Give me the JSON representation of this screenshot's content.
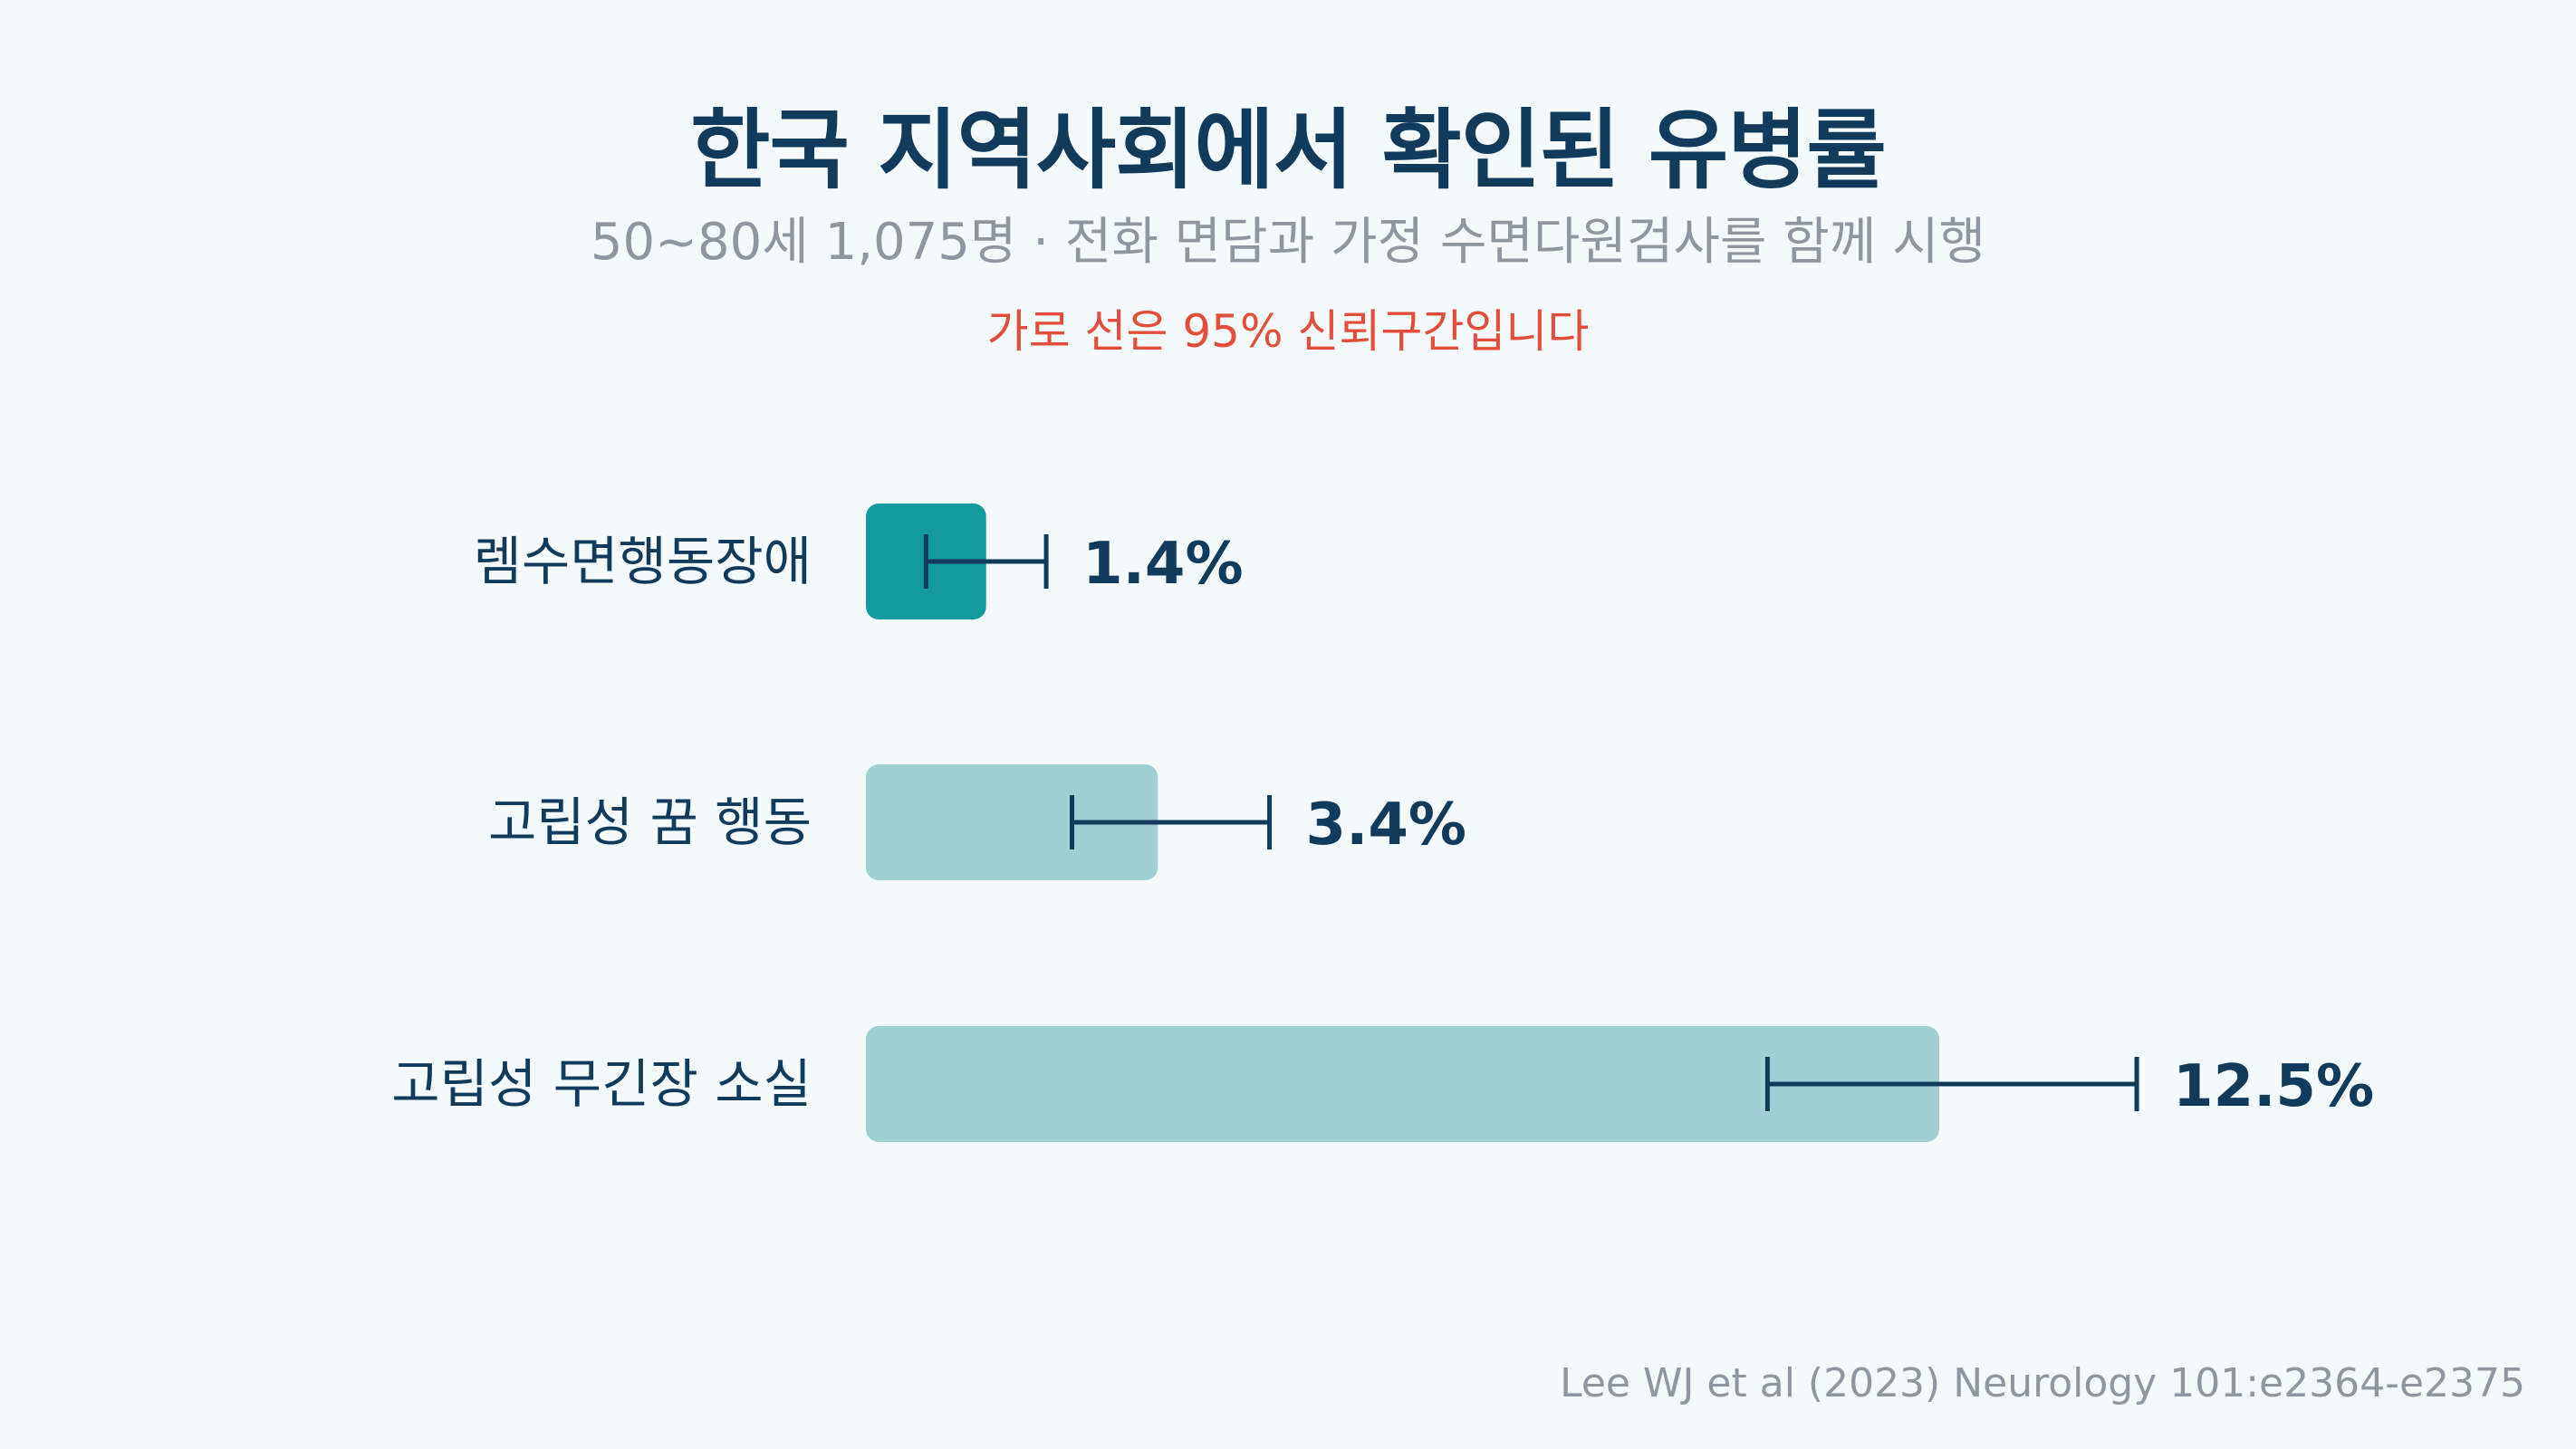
{
  "title": "한국 지역사회에서 확인된 유병률",
  "subtitle": "50~80세 1,075명 · 전화 면담과 가정 수면다원검사를 함께 시행",
  "note": "가로 선은 95% 신뢰구간입니다",
  "source": "Lee WJ et al (2023) Neurology 101:e2364-e2375",
  "colors": {
    "highlight_bar": "#139a9c",
    "muted_bar": "#a0d0d1",
    "error_bar": "#113a5b",
    "value_label": "#113a5b",
    "category_label": "#113a5b",
    "note": "#e24e3b"
  },
  "chart_data": {
    "type": "bar",
    "orientation": "horizontal",
    "categories": [
      "렘수면행동장애",
      "고립성 꿈 행동",
      "고립성 무긴장 소실"
    ],
    "values": [
      1.4,
      3.4,
      12.5
    ],
    "value_labels": [
      "1.4%",
      "3.4%",
      "12.5%"
    ],
    "ci_lower": [
      0.7,
      2.4,
      10.5
    ],
    "ci_upper": [
      2.1,
      4.7,
      14.8
    ],
    "highlighted_index": 0,
    "xlim": [
      0,
      25
    ],
    "grid": false
  }
}
